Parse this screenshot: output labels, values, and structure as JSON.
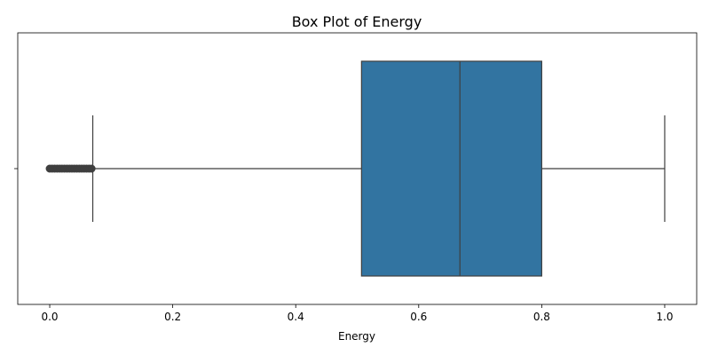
{
  "chart_data": {
    "type": "box",
    "title": "Box Plot of Energy",
    "xlabel": "Energy",
    "ylabel": "",
    "xlim": [
      -0.052,
      1.052
    ],
    "xticks": [
      0.0,
      0.2,
      0.4,
      0.6,
      0.8,
      1.0
    ],
    "xtick_labels": [
      "0.0",
      "0.2",
      "0.4",
      "0.6",
      "0.8",
      "1.0"
    ],
    "yticks": [
      0
    ],
    "ytick_labels": [
      ""
    ],
    "box": {
      "whisker_low": 0.07,
      "q1": 0.507,
      "median": 0.667,
      "q3": 0.8,
      "whisker_high": 1.0
    },
    "outliers": [
      0.0,
      0.004,
      0.008,
      0.012,
      0.016,
      0.02,
      0.024,
      0.028,
      0.032,
      0.036,
      0.04,
      0.044,
      0.048,
      0.052,
      0.056,
      0.06,
      0.064,
      0.068
    ],
    "colors": {
      "box_fill": "#3274a1",
      "line": "#3f3f3f"
    },
    "grid": false
  }
}
